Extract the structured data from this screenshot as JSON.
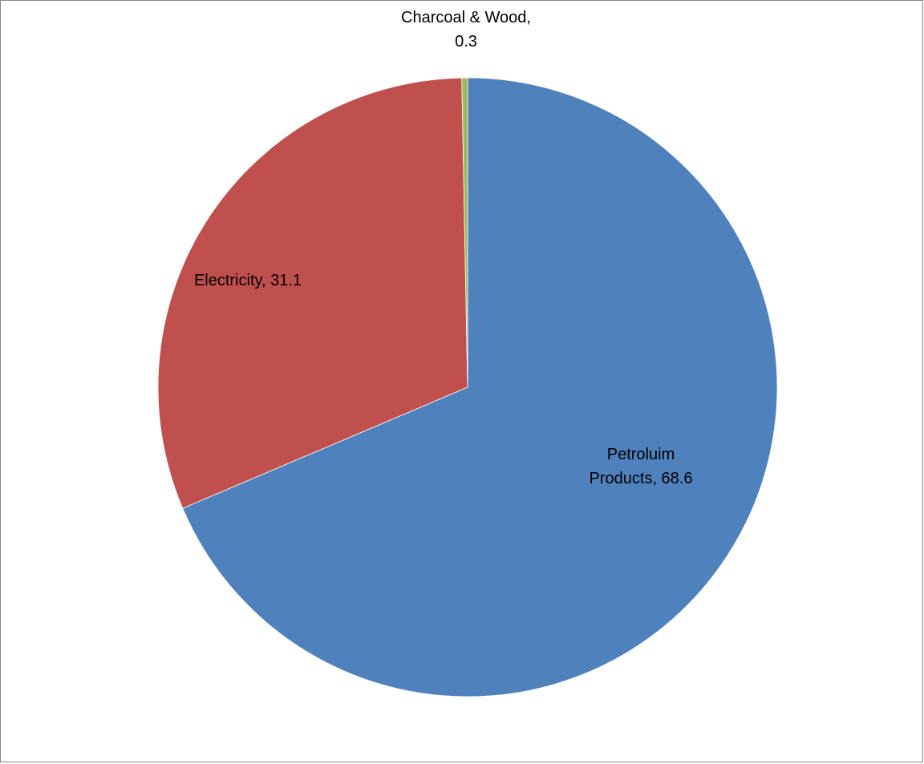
{
  "chart_data": {
    "type": "pie",
    "title": "",
    "slices": [
      {
        "name": "Petroluim Products",
        "value": 68.6,
        "color": "#4F81BD",
        "label_lines": [
          "Petroluim",
          "Products, 68.6"
        ]
      },
      {
        "name": "Electricity",
        "value": 31.1,
        "color": "#C0504D",
        "label_lines": [
          "Electricity, 31.1"
        ]
      },
      {
        "name": "Charcoal & Wood",
        "value": 0.3,
        "color": "#9BBB59",
        "label_lines": [
          "Charcoal & Wood,",
          "0.3"
        ]
      }
    ],
    "start_angle": "12 o'clock",
    "direction": "clockwise",
    "legend": "none",
    "label_style": "category name and value"
  }
}
